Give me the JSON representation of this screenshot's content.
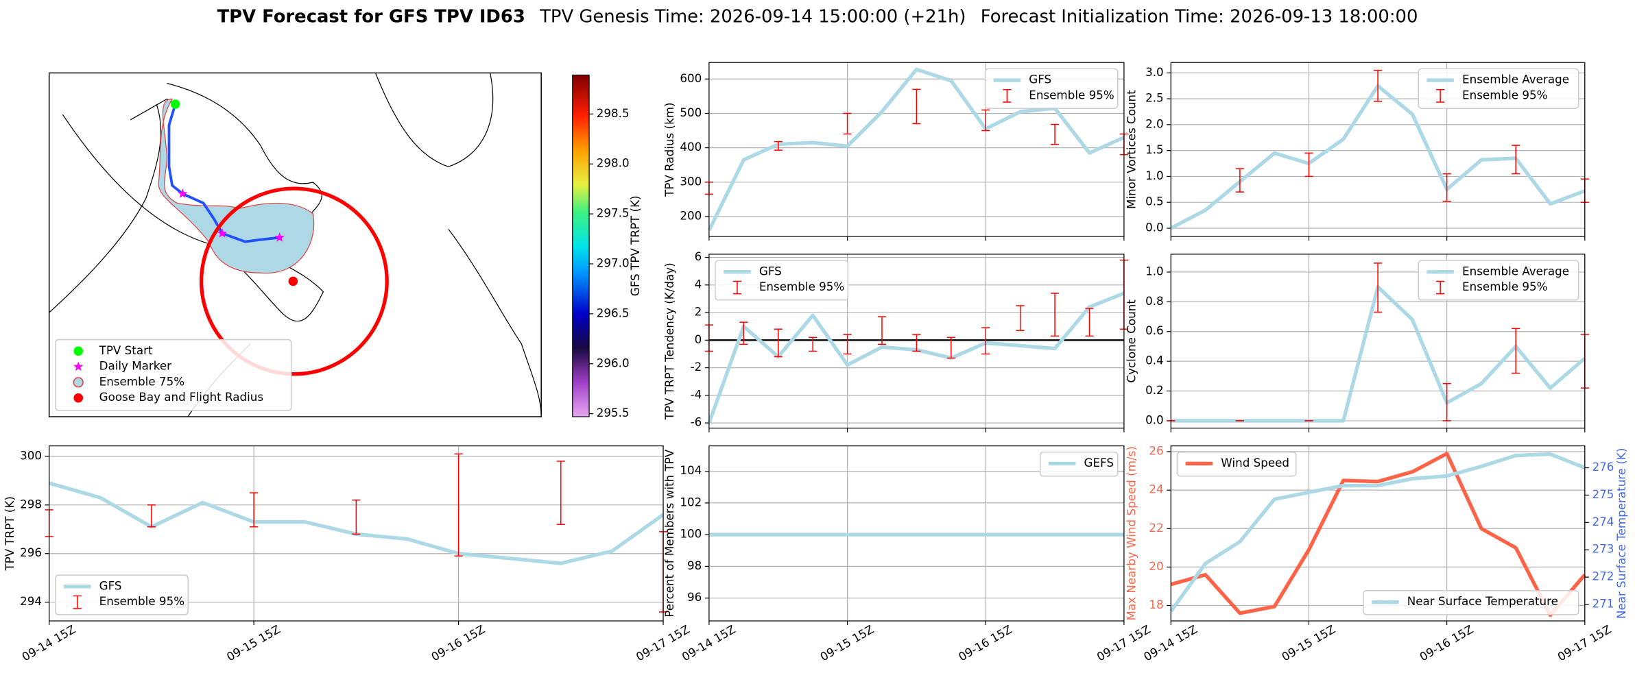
{
  "header": {
    "title": "TPV Forecast for GFS TPV ID63",
    "genesis_time": "TPV Genesis Time: 2026-09-14 15:00:00 (+21h)",
    "init_time": "Forecast Initialization Time: 2026-09-13 18:00:00"
  },
  "chart_data": [
    {
      "type": "map",
      "colorbar_label": "GFS TPV TRPT (K)",
      "clim": [
        295.47,
        298.89
      ],
      "cticks": [
        295.5,
        {
          "value": 296,
          "label": "296.0"
        },
        296.5,
        {
          "value": 297,
          "label": "297.0"
        },
        297.5,
        {
          "value": 298,
          "label": "298.0"
        },
        298.5
      ],
      "legend": "lower left",
      "legend_items": [
        {
          "name": "TPV Start",
          "color": "#00ff00",
          "marker": "circle"
        },
        {
          "name": "Daily Marker",
          "color": "#ff00ff",
          "marker": "star"
        },
        {
          "name": "Ensemble 75%",
          "color": "#add8e6",
          "marker": "ring"
        },
        {
          "name": "Goose Bay and Flight Radius",
          "color": "#ff0000",
          "marker": "circle"
        }
      ]
    },
    {
      "type": "line",
      "ylabel": "TPV Radius (km)",
      "ylim": [
        142,
        648
      ],
      "yticks": [
        200,
        300,
        400,
        500,
        600
      ],
      "grid": true,
      "legend": "upper right",
      "series": [
        {
          "name": "GFS",
          "color": "#add8e6",
          "values": [
            160,
            365,
            410,
            415,
            405,
            505,
            628,
            595,
            455,
            505,
            515,
            385,
            430
          ]
        },
        {
          "name": "Ensemble 95%",
          "color": "#ff0000",
          "low": [
            265,
            null,
            393,
            null,
            440,
            null,
            470,
            null,
            450,
            null,
            410,
            null,
            380
          ],
          "high": [
            300,
            null,
            418,
            null,
            500,
            null,
            570,
            null,
            510,
            null,
            468,
            null,
            440
          ]
        }
      ]
    },
    {
      "type": "line",
      "ylabel": "Minor Vortices Count",
      "ylim": [
        -0.16,
        3.2
      ],
      "yticks": [
        {
          "value": 0,
          "label": "0.0"
        },
        0.5,
        {
          "value": 1,
          "label": "1.0"
        },
        1.5,
        {
          "value": 2,
          "label": "2.0"
        },
        2.5,
        {
          "value": 3,
          "label": "3.0"
        }
      ],
      "grid": true,
      "legend": "upper right",
      "series": [
        {
          "name": "Ensemble Average",
          "color": "#add8e6",
          "values": [
            0.0,
            0.35,
            0.9,
            1.45,
            1.25,
            1.72,
            2.75,
            2.2,
            0.75,
            1.32,
            1.35,
            0.47,
            0.72
          ]
        },
        {
          "name": "Ensemble 95%",
          "color": "#ff0000",
          "low": [
            null,
            null,
            0.7,
            null,
            1.0,
            null,
            2.45,
            null,
            0.52,
            null,
            1.05,
            null,
            0.5
          ],
          "high": [
            null,
            null,
            1.15,
            null,
            1.45,
            null,
            3.05,
            null,
            1.05,
            null,
            1.6,
            null,
            0.95
          ]
        }
      ]
    },
    {
      "type": "line",
      "ylabel": "TPV TRPT Tendency (K/day)",
      "ylim": [
        -6.38,
        6.23
      ],
      "yticks": [
        -6,
        -4,
        -2,
        0,
        2,
        4,
        6
      ],
      "grid": true,
      "hline": 0,
      "legend": "upper left",
      "series": [
        {
          "name": "GFS",
          "color": "#add8e6",
          "values": [
            -6,
            1,
            -1.2,
            1.8,
            -1.8,
            -0.5,
            -0.7,
            -1.3,
            -0.2,
            -0.4,
            -0.6,
            2.4,
            3.4
          ]
        },
        {
          "name": "Ensemble 95%",
          "color": "#ff0000",
          "low": [
            -0.8,
            -0.3,
            -1.2,
            -0.8,
            -1.0,
            -0.3,
            -0.8,
            -1.3,
            -1.0,
            0.7,
            0.3,
            0.3,
            0.8
          ],
          "high": [
            1.1,
            1.3,
            0.8,
            0.2,
            0.4,
            1.7,
            0.4,
            0.2,
            0.9,
            2.5,
            3.4,
            2.3,
            5.8
          ]
        }
      ]
    },
    {
      "type": "line",
      "ylabel": "Cyclone Count",
      "ylim": [
        -0.05,
        1.12
      ],
      "yticks": [
        {
          "value": 0,
          "label": "0.0"
        },
        0.2,
        0.4,
        0.6,
        0.8,
        {
          "value": 1,
          "label": "1.0"
        }
      ],
      "grid": true,
      "legend": "upper right",
      "series": [
        {
          "name": "Ensemble Average",
          "color": "#add8e6",
          "values": [
            0,
            0,
            0,
            0,
            0,
            0,
            0.9,
            0.68,
            0.12,
            0.25,
            0.5,
            0.22,
            0.42
          ]
        },
        {
          "name": "Ensemble 95%",
          "color": "#ff0000",
          "low": [
            0,
            null,
            0,
            null,
            0,
            null,
            0.73,
            null,
            0,
            null,
            0.32,
            null,
            0.22
          ],
          "high": [
            0,
            null,
            0,
            null,
            0,
            null,
            1.06,
            null,
            0.25,
            null,
            0.62,
            null,
            0.58
          ]
        }
      ]
    },
    {
      "type": "line",
      "ylabel": "TPV TRPT (K)",
      "ylim": [
        293.23,
        300.43
      ],
      "yticks": [
        294,
        296,
        298,
        300
      ],
      "grid": true,
      "legend": "lower left",
      "categories": [
        "09-14 15Z",
        null,
        null,
        null,
        "09-15 15Z",
        null,
        null,
        null,
        "09-16 15Z",
        null,
        null,
        null,
        "09-17 15Z"
      ],
      "series": [
        {
          "name": "GFS",
          "color": "#add8e6",
          "values": [
            298.9,
            298.3,
            297.1,
            298.1,
            297.3,
            297.3,
            296.8,
            296.6,
            296.0,
            295.8,
            295.6,
            296.1,
            297.6
          ]
        },
        {
          "name": "Ensemble 95%",
          "color": "#ff0000",
          "low": [
            296.7,
            null,
            297.1,
            null,
            297.1,
            null,
            296.8,
            null,
            295.9,
            null,
            297.2,
            null,
            293.6
          ],
          "high": [
            297.8,
            null,
            298.0,
            null,
            298.5,
            null,
            298.2,
            null,
            300.1,
            null,
            299.8,
            null,
            296.9
          ]
        }
      ]
    },
    {
      "type": "line",
      "ylabel": "Percent of Members with TPV",
      "ylim": [
        94.56,
        105.6
      ],
      "yticks": [
        96,
        98,
        100,
        102,
        104
      ],
      "grid": true,
      "legend": "upper right",
      "categories": [
        "09-14 15Z",
        null,
        null,
        null,
        "09-15 15Z",
        null,
        null,
        null,
        "09-16 15Z",
        null,
        null,
        null,
        "09-17 15Z"
      ],
      "series": [
        {
          "name": "GEFS",
          "color": "#add8e6",
          "values": [
            100,
            100,
            100,
            100,
            100,
            100,
            100,
            100,
            100,
            100,
            100,
            100,
            100
          ]
        }
      ]
    },
    {
      "type": "line",
      "ylabel": "Max Nearby Wind Speed (m/s)",
      "ycolor": "#f4694e",
      "ylim": [
        17.2,
        26.3
      ],
      "yticks": [
        18,
        20,
        22,
        24,
        26
      ],
      "y2label": "Near Surface Temperature (K)",
      "y2color": "#4169e1",
      "y2lim": [
        270.4,
        276.8
      ],
      "y2ticks": [
        271,
        272,
        273,
        274,
        275,
        276
      ],
      "grid": true,
      "legend": "upper left",
      "legend2": "lower right",
      "categories": [
        "09-14 15Z",
        null,
        null,
        null,
        "09-15 15Z",
        null,
        null,
        null,
        "09-16 15Z",
        null,
        null,
        null,
        "09-17 15Z"
      ],
      "series": [
        {
          "name": "Wind Speed",
          "color": "#ff6347",
          "values": [
            19.1,
            19.6,
            17.6,
            17.95,
            20.9,
            24.5,
            24.45,
            24.95,
            25.9,
            22.0,
            21.0,
            17.5,
            19.6
          ]
        },
        {
          "name": "Near Surface Temperature",
          "color": "#add8e6",
          "axis": "y2",
          "values": [
            270.75,
            272.5,
            273.3,
            274.85,
            275.1,
            275.35,
            275.35,
            275.6,
            275.7,
            276.05,
            276.45,
            276.5,
            276.0
          ]
        }
      ]
    }
  ]
}
